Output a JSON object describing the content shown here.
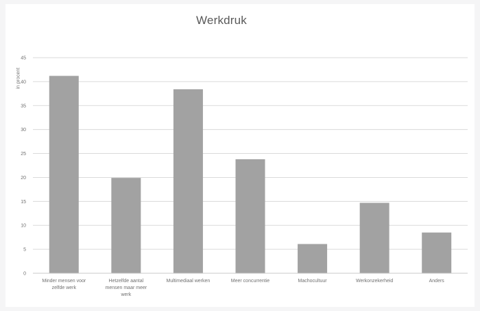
{
  "chart_data": {
    "type": "bar",
    "title": "Werkdruk",
    "ylabel": "in procent",
    "xlabel": "",
    "ylim": [
      0,
      45
    ],
    "yticks": [
      0,
      5,
      10,
      15,
      20,
      25,
      30,
      35,
      40,
      45
    ],
    "grid": true,
    "categories": [
      "Minder mensen voor zelfde werk",
      "Hetzelfde aantal mensen maar meer werk",
      "Multimediaal werken",
      "Meer concurrentie",
      "Machocultuur",
      "Werkonzekerheid",
      "Anders"
    ],
    "values": [
      41.2,
      19.9,
      38.4,
      23.8,
      6.1,
      14.7,
      8.5
    ],
    "bar_color": "#a2a2a2",
    "grid_color": "#dadada"
  }
}
